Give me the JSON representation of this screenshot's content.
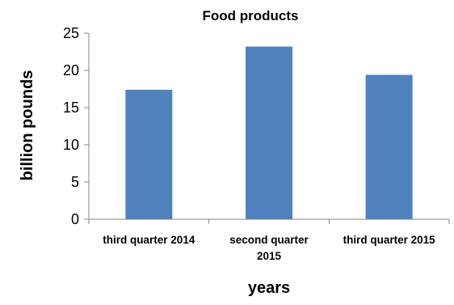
{
  "chart_data": {
    "type": "bar",
    "title": "Food products",
    "xlabel": "years",
    "ylabel": "billion pounds",
    "categories": [
      [
        "third quarter 2014"
      ],
      [
        "second quarter",
        "2015"
      ],
      [
        "third quarter 2015"
      ]
    ],
    "values": [
      17.4,
      23.2,
      19.4
    ],
    "ylim": [
      0,
      25
    ],
    "yticks": [
      0,
      5,
      10,
      15,
      20,
      25
    ],
    "grid": false,
    "legend": "none",
    "bar_color": "#4f81bd"
  }
}
